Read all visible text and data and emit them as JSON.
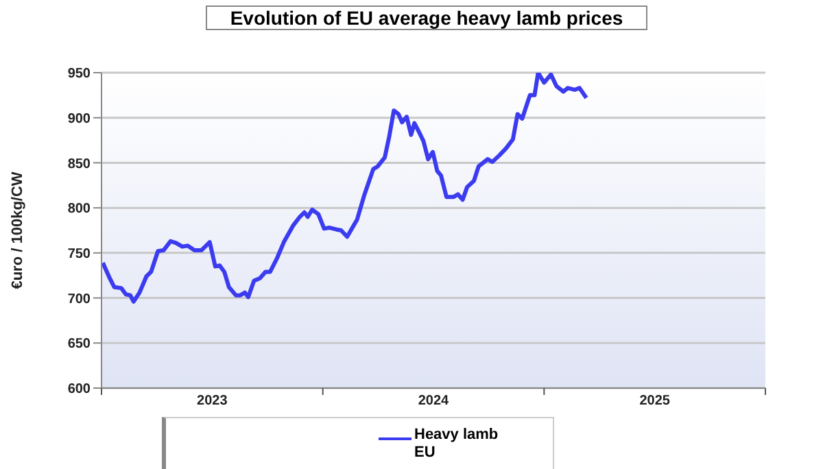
{
  "chart_data": {
    "type": "line",
    "title": "Evolution of EU average heavy lamb prices",
    "ylabel": "€uro / 100kg/CW",
    "x": [
      2023.006,
      2023.037,
      2023.058,
      2023.089,
      2023.11,
      2023.13,
      2023.145,
      2023.172,
      2023.203,
      2023.224,
      2023.255,
      2023.281,
      2023.312,
      2023.337,
      2023.365,
      2023.389,
      2023.42,
      2023.452,
      2023.489,
      2023.514,
      2023.534,
      2023.555,
      2023.576,
      2023.607,
      2023.627,
      2023.648,
      2023.663,
      2023.689,
      2023.716,
      2023.741,
      2023.762,
      2023.793,
      2023.824,
      2023.865,
      2023.896,
      2023.917,
      2023.932,
      2023.952,
      2023.98,
      2024.006,
      2024.031,
      2024.062,
      2024.083,
      2024.11,
      2024.155,
      2024.186,
      2024.228,
      2024.248,
      2024.28,
      2024.3,
      2024.321,
      2024.342,
      2024.358,
      2024.379,
      2024.399,
      2024.414,
      2024.435,
      2024.455,
      2024.476,
      2024.497,
      2024.517,
      2024.534,
      2024.559,
      2024.59,
      2024.611,
      2024.632,
      2024.652,
      2024.683,
      2024.704,
      2024.745,
      2024.766,
      2024.797,
      2024.828,
      2024.859,
      2024.88,
      2024.901,
      2024.936,
      2024.957,
      2024.973,
      2025.0,
      2025.031,
      2025.056,
      2025.087,
      2025.107,
      2025.138,
      2025.16,
      2025.191
    ],
    "series": [
      {
        "name": "Heavy lamb EU",
        "color": "#3b3bf0",
        "values": [
          739,
          722,
          712,
          711,
          704,
          703,
          696,
          706,
          724,
          729,
          752,
          753,
          763,
          761,
          757,
          758,
          753,
          753,
          762,
          735,
          736,
          729,
          712,
          703,
          703,
          706,
          701,
          719,
          722,
          729,
          729,
          744,
          762,
          780,
          790,
          795,
          790,
          798,
          793,
          777,
          778,
          776,
          775,
          768,
          787,
          813,
          843,
          846,
          856,
          879,
          908,
          904,
          895,
          901,
          881,
          894,
          884,
          874,
          854,
          862,
          841,
          836,
          812,
          812,
          815,
          809,
          823,
          830,
          846,
          854,
          851,
          858,
          866,
          876,
          904,
          899,
          925,
          925,
          950,
          939,
          948,
          935,
          929,
          933,
          931,
          933,
          922
        ]
      }
    ],
    "xlim": [
      2023,
      2026
    ],
    "xticks": [
      {
        "value": 2023,
        "label": null
      },
      {
        "value": 2023.5,
        "label": "2023"
      },
      {
        "value": 2024,
        "label": null
      },
      {
        "value": 2024.5,
        "label": "2024"
      },
      {
        "value": 2025,
        "label": null
      },
      {
        "value": 2025.5,
        "label": "2025"
      },
      {
        "value": 2026,
        "label": null
      }
    ],
    "ylim": [
      600,
      950
    ],
    "yticks": [
      600,
      650,
      700,
      750,
      800,
      850,
      900,
      950
    ],
    "grid": "y",
    "legend": "bottom",
    "marker": "none",
    "line_style": "solid"
  }
}
